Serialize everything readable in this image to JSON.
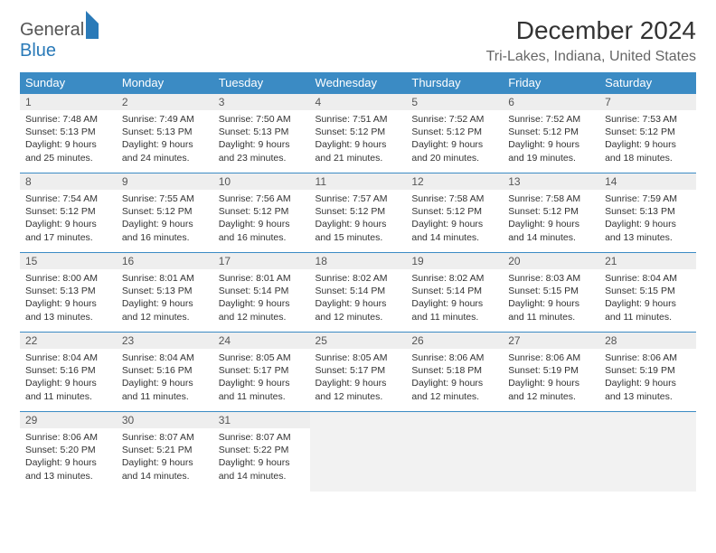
{
  "logo": {
    "part1": "General",
    "part2": "Blue"
  },
  "title": "December 2024",
  "location": "Tri-Lakes, Indiana, United States",
  "table": {
    "header_bg": "#3b8bc4",
    "header_fg": "#ffffff",
    "daynum_bg": "#eeeeee",
    "border_color": "#3b8bc4",
    "font_family": "Arial",
    "columns": [
      "Sunday",
      "Monday",
      "Tuesday",
      "Wednesday",
      "Thursday",
      "Friday",
      "Saturday"
    ],
    "weeks": [
      [
        {
          "n": "1",
          "sunrise": "7:48 AM",
          "sunset": "5:13 PM",
          "daylight": "9 hours and 25 minutes."
        },
        {
          "n": "2",
          "sunrise": "7:49 AM",
          "sunset": "5:13 PM",
          "daylight": "9 hours and 24 minutes."
        },
        {
          "n": "3",
          "sunrise": "7:50 AM",
          "sunset": "5:13 PM",
          "daylight": "9 hours and 23 minutes."
        },
        {
          "n": "4",
          "sunrise": "7:51 AM",
          "sunset": "5:12 PM",
          "daylight": "9 hours and 21 minutes."
        },
        {
          "n": "5",
          "sunrise": "7:52 AM",
          "sunset": "5:12 PM",
          "daylight": "9 hours and 20 minutes."
        },
        {
          "n": "6",
          "sunrise": "7:52 AM",
          "sunset": "5:12 PM",
          "daylight": "9 hours and 19 minutes."
        },
        {
          "n": "7",
          "sunrise": "7:53 AM",
          "sunset": "5:12 PM",
          "daylight": "9 hours and 18 minutes."
        }
      ],
      [
        {
          "n": "8",
          "sunrise": "7:54 AM",
          "sunset": "5:12 PM",
          "daylight": "9 hours and 17 minutes."
        },
        {
          "n": "9",
          "sunrise": "7:55 AM",
          "sunset": "5:12 PM",
          "daylight": "9 hours and 16 minutes."
        },
        {
          "n": "10",
          "sunrise": "7:56 AM",
          "sunset": "5:12 PM",
          "daylight": "9 hours and 16 minutes."
        },
        {
          "n": "11",
          "sunrise": "7:57 AM",
          "sunset": "5:12 PM",
          "daylight": "9 hours and 15 minutes."
        },
        {
          "n": "12",
          "sunrise": "7:58 AM",
          "sunset": "5:12 PM",
          "daylight": "9 hours and 14 minutes."
        },
        {
          "n": "13",
          "sunrise": "7:58 AM",
          "sunset": "5:12 PM",
          "daylight": "9 hours and 14 minutes."
        },
        {
          "n": "14",
          "sunrise": "7:59 AM",
          "sunset": "5:13 PM",
          "daylight": "9 hours and 13 minutes."
        }
      ],
      [
        {
          "n": "15",
          "sunrise": "8:00 AM",
          "sunset": "5:13 PM",
          "daylight": "9 hours and 13 minutes."
        },
        {
          "n": "16",
          "sunrise": "8:01 AM",
          "sunset": "5:13 PM",
          "daylight": "9 hours and 12 minutes."
        },
        {
          "n": "17",
          "sunrise": "8:01 AM",
          "sunset": "5:14 PM",
          "daylight": "9 hours and 12 minutes."
        },
        {
          "n": "18",
          "sunrise": "8:02 AM",
          "sunset": "5:14 PM",
          "daylight": "9 hours and 12 minutes."
        },
        {
          "n": "19",
          "sunrise": "8:02 AM",
          "sunset": "5:14 PM",
          "daylight": "9 hours and 11 minutes."
        },
        {
          "n": "20",
          "sunrise": "8:03 AM",
          "sunset": "5:15 PM",
          "daylight": "9 hours and 11 minutes."
        },
        {
          "n": "21",
          "sunrise": "8:04 AM",
          "sunset": "5:15 PM",
          "daylight": "9 hours and 11 minutes."
        }
      ],
      [
        {
          "n": "22",
          "sunrise": "8:04 AM",
          "sunset": "5:16 PM",
          "daylight": "9 hours and 11 minutes."
        },
        {
          "n": "23",
          "sunrise": "8:04 AM",
          "sunset": "5:16 PM",
          "daylight": "9 hours and 11 minutes."
        },
        {
          "n": "24",
          "sunrise": "8:05 AM",
          "sunset": "5:17 PM",
          "daylight": "9 hours and 11 minutes."
        },
        {
          "n": "25",
          "sunrise": "8:05 AM",
          "sunset": "5:17 PM",
          "daylight": "9 hours and 12 minutes."
        },
        {
          "n": "26",
          "sunrise": "8:06 AM",
          "sunset": "5:18 PM",
          "daylight": "9 hours and 12 minutes."
        },
        {
          "n": "27",
          "sunrise": "8:06 AM",
          "sunset": "5:19 PM",
          "daylight": "9 hours and 12 minutes."
        },
        {
          "n": "28",
          "sunrise": "8:06 AM",
          "sunset": "5:19 PM",
          "daylight": "9 hours and 13 minutes."
        }
      ],
      [
        {
          "n": "29",
          "sunrise": "8:06 AM",
          "sunset": "5:20 PM",
          "daylight": "9 hours and 13 minutes."
        },
        {
          "n": "30",
          "sunrise": "8:07 AM",
          "sunset": "5:21 PM",
          "daylight": "9 hours and 14 minutes."
        },
        {
          "n": "31",
          "sunrise": "8:07 AM",
          "sunset": "5:22 PM",
          "daylight": "9 hours and 14 minutes."
        },
        null,
        null,
        null,
        null
      ]
    ]
  }
}
